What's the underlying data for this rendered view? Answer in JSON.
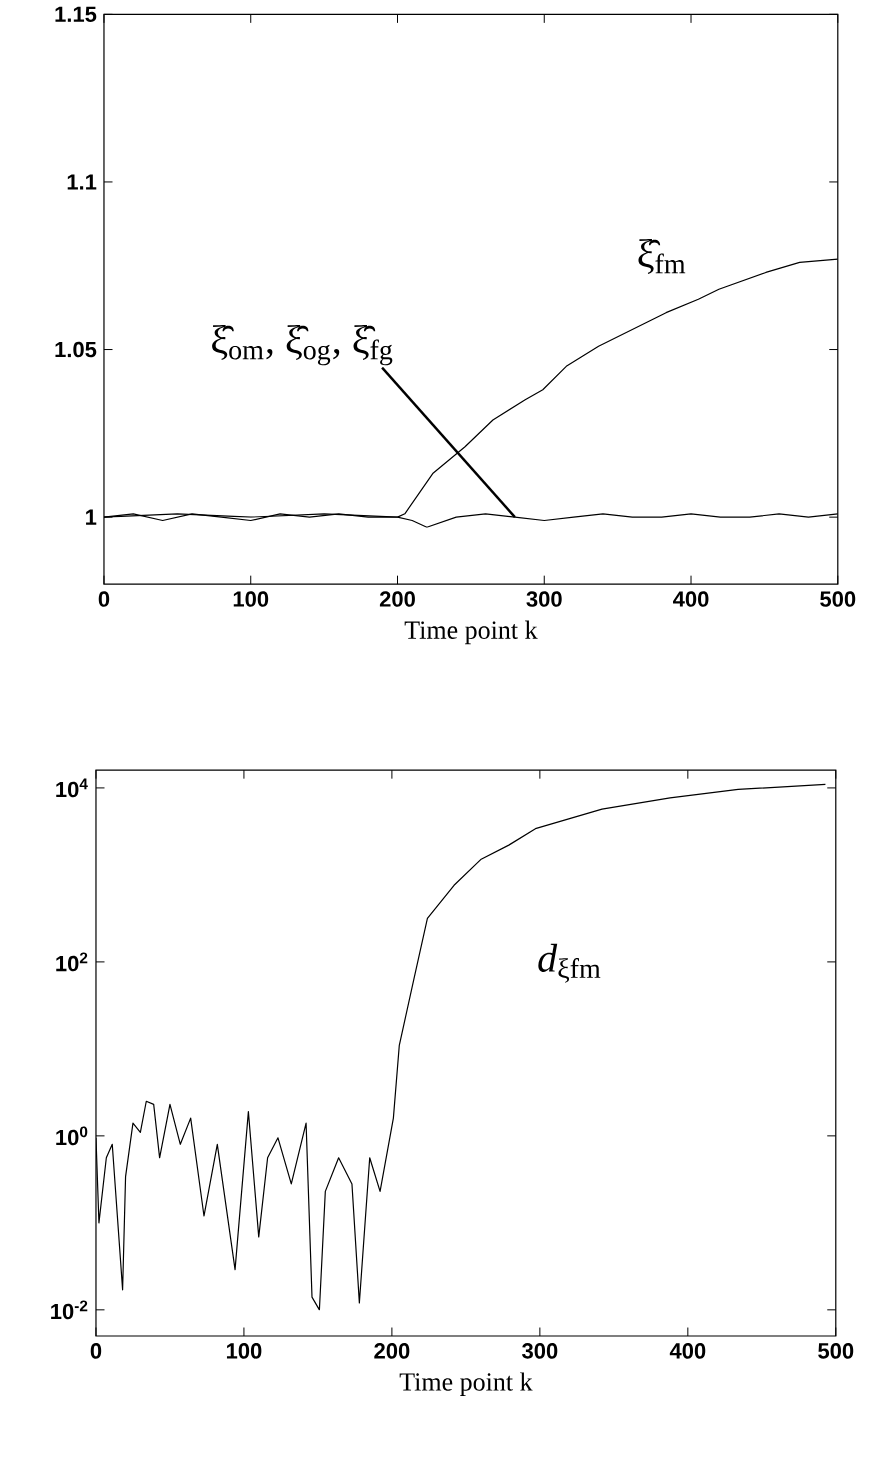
{
  "chart_data": [
    {
      "type": "line",
      "xlabel": "Time point k",
      "xlim": [
        0,
        500
      ],
      "ylim": [
        0.98,
        1.15
      ],
      "xticks": [
        0,
        100,
        200,
        300,
        400,
        500
      ],
      "yticks": [
        1,
        1.05,
        1.1,
        1.15
      ],
      "series": [
        {
          "name": "ξ̑$_{om}$, ξ̑$_{og}$, ξ̑$_{fg}$",
          "color": "#000000",
          "x": [
            0,
            20,
            40,
            60,
            80,
            100,
            120,
            140,
            160,
            180,
            200,
            210,
            220,
            240,
            260,
            280,
            300,
            320,
            340,
            360,
            380,
            400,
            420,
            440,
            460,
            480,
            500
          ],
          "values": [
            1.0,
            1.001,
            0.999,
            1.001,
            1.0,
            0.999,
            1.001,
            1.0,
            1.001,
            1.0,
            1.0,
            0.999,
            0.997,
            1.0,
            1.001,
            1.0,
            0.999,
            1.0,
            1.001,
            1.0,
            1.0,
            1.001,
            1.0,
            1.0,
            1.001,
            1.0,
            1.001
          ]
        },
        {
          "name": "ξ̑$_{fm}$",
          "color": "#000000",
          "x": [
            0,
            50,
            100,
            150,
            200,
            205,
            224,
            246,
            265,
            287,
            299,
            315,
            337,
            360,
            383,
            405,
            419,
            451,
            474,
            500
          ],
          "values": [
            1.0,
            1.001,
            1.0,
            1.001,
            1.0,
            1.001,
            1.013,
            1.021,
            1.029,
            1.035,
            1.038,
            1.045,
            1.051,
            1.056,
            1.061,
            1.065,
            1.068,
            1.073,
            1.076,
            1.077
          ]
        }
      ]
    },
    {
      "type": "line",
      "xlabel": "Time point k",
      "log": "y",
      "xlim": [
        0,
        500
      ],
      "ylim": [
        0.005,
        16000
      ],
      "xticks": [
        0,
        100,
        200,
        300,
        400,
        500
      ],
      "yticks": [
        {
          "value": 0.01,
          "label": "10$^{-2}$"
        },
        {
          "value": 1,
          "label": "10$^{0}$"
        },
        {
          "value": 100,
          "label": "10$^{2}$"
        },
        {
          "value": 10000,
          "label": "10$^{4}$"
        }
      ],
      "series": [
        {
          "name": "*d*$_{ξfm}$",
          "color": "#000000",
          "x": [
            0,
            2,
            7,
            11,
            18,
            20,
            25,
            30,
            34,
            39,
            43,
            50,
            57,
            64,
            73,
            82,
            94,
            103,
            110,
            116,
            123,
            132,
            142,
            146,
            151,
            155,
            164,
            173,
            178,
            185,
            192,
            201,
            205,
            215,
            224,
            242,
            260,
            279,
            297,
            342,
            388,
            434,
            493
          ],
          "values": [
            0.95,
            0.1,
            0.56,
            0.8,
            0.017,
            0.34,
            1.4,
            1.1,
            2.5,
            2.3,
            0.56,
            2.3,
            0.8,
            1.6,
            0.12,
            0.8,
            0.029,
            1.9,
            0.069,
            0.56,
            0.95,
            0.28,
            1.4,
            0.014,
            0.01,
            0.23,
            0.56,
            0.28,
            0.012,
            0.56,
            0.23,
            1.6,
            11,
            65,
            316,
            760,
            1500,
            2200,
            3400,
            5700,
            7700,
            9600,
            11000
          ]
        }
      ]
    }
  ]
}
